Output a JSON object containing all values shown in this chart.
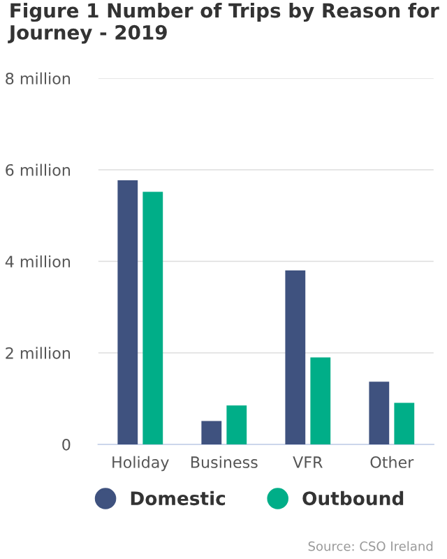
{
  "chart_data": {
    "type": "bar",
    "title": "Figure 1 Number of Trips by Reason for Journey - 2019",
    "categories": [
      "Holiday",
      "Business",
      "VFR",
      "Other"
    ],
    "series": [
      {
        "name": "Domestic",
        "color": "#3f527f",
        "values": [
          5.77,
          0.51,
          3.8,
          1.37
        ]
      },
      {
        "name": "Outbound",
        "color": "#00ae88",
        "values": [
          5.52,
          0.85,
          1.9,
          0.91
        ]
      }
    ],
    "ylim": [
      0,
      8
    ],
    "yticks": [
      0,
      {
        "value": 2,
        "label": "2 million"
      },
      {
        "value": 4,
        "label": "4 million"
      },
      {
        "value": 6,
        "label": "6 million"
      },
      {
        "value": 8,
        "label": "8 million"
      }
    ],
    "grid": "y",
    "legend": "bottom",
    "annotations": [
      "Source: CSO Ireland"
    ]
  }
}
